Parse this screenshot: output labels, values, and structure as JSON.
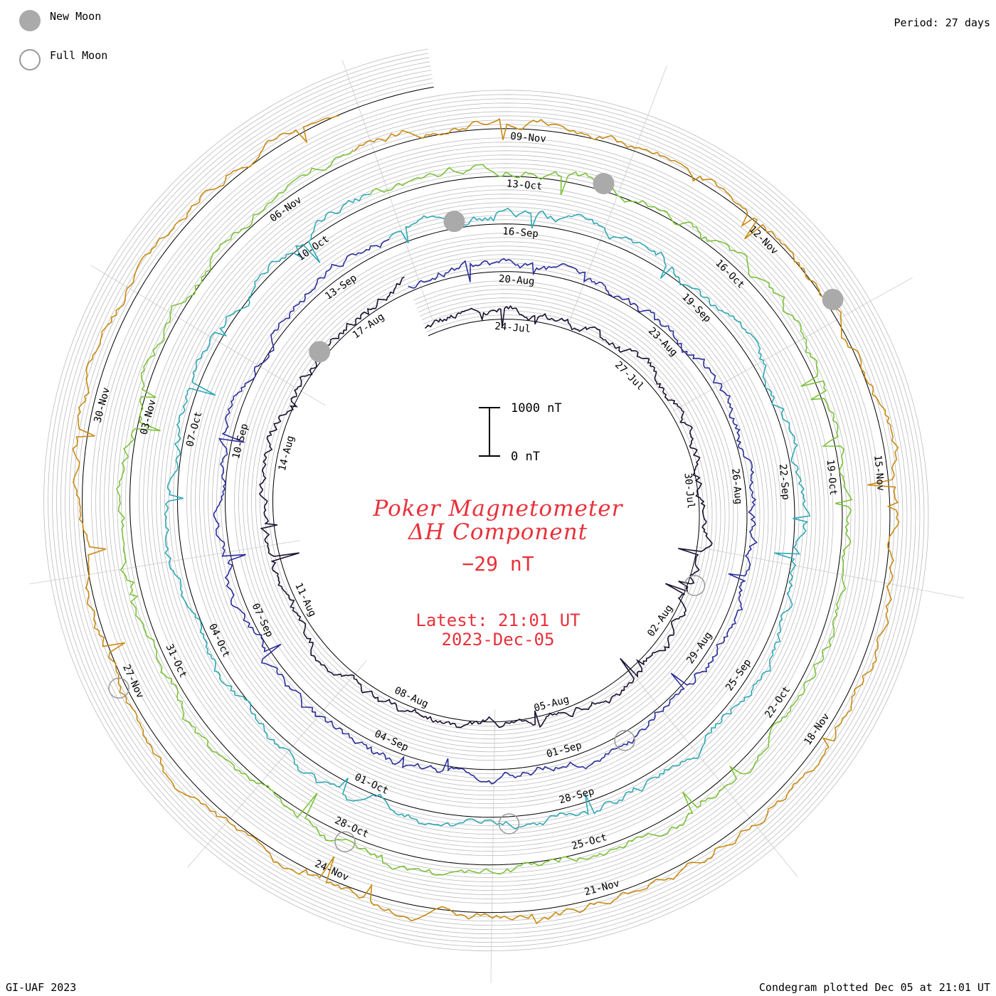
{
  "legend": {
    "new_moon": "New Moon",
    "full_moon": "Full Moon"
  },
  "period": "Period: 27 days",
  "footer_left": "GI-UAF 2023",
  "footer_right": "Condegram plotted Dec 05 at 21:01 UT",
  "center": {
    "title_line1": "Poker Magnetometer",
    "title_line2": "ΔH Component",
    "value": "−29 nT",
    "latest": "Latest: 21:01 UT",
    "date": "2023-Dec-05"
  },
  "scale": {
    "top_label": "1000 nT",
    "bottom_label": "0 nT"
  },
  "colors": {
    "text_accent": "#e8313b",
    "grid": "#bbbbbb",
    "moon_new": "#aaaaaa",
    "moon_full": "#999999"
  },
  "chart_data": {
    "type": "condegram-spiral",
    "period_days": 27,
    "start_date": "2023-07-22",
    "end_date": "2023-12-05",
    "series": [
      {
        "turn": 1,
        "color": "#1a1030",
        "date_labels": [
          "24-Jul",
          "27-Jul",
          "30-Jul",
          "02-Aug",
          "05-Aug",
          "08-Aug",
          "11-Aug",
          "14-Aug",
          "17-Aug"
        ]
      },
      {
        "turn": 2,
        "color": "#2b2f9a",
        "date_labels": [
          "20-Aug",
          "23-Aug",
          "26-Aug",
          "29-Aug",
          "01-Sep",
          "04-Sep",
          "07-Sep",
          "10-Sep",
          "13-Sep"
        ]
      },
      {
        "turn": 3,
        "color": "#2fa8b5",
        "date_labels": [
          "16-Sep",
          "19-Sep",
          "22-Sep",
          "25-Sep",
          "28-Sep",
          "01-Oct",
          "04-Oct",
          "07-Oct",
          "10-Oct"
        ]
      },
      {
        "turn": 4,
        "color": "#7cc23a",
        "date_labels": [
          "13-Oct",
          "16-Oct",
          "19-Oct",
          "22-Oct",
          "25-Oct",
          "28-Oct",
          "31-Oct",
          "03-Nov",
          "06-Nov"
        ]
      },
      {
        "turn": 5,
        "color": "#c98a12",
        "date_labels": [
          "09-Nov",
          "12-Nov",
          "15-Nov",
          "18-Nov",
          "21-Nov",
          "24-Nov",
          "27-Nov",
          "30-Nov"
        ]
      }
    ],
    "new_moons": [
      "2023-08-16",
      "2023-09-15",
      "2023-10-14",
      "2023-11-13"
    ],
    "full_moons": [
      "2023-08-01",
      "2023-08-31",
      "2023-09-29",
      "2023-10-28",
      "2023-11-27"
    ]
  }
}
